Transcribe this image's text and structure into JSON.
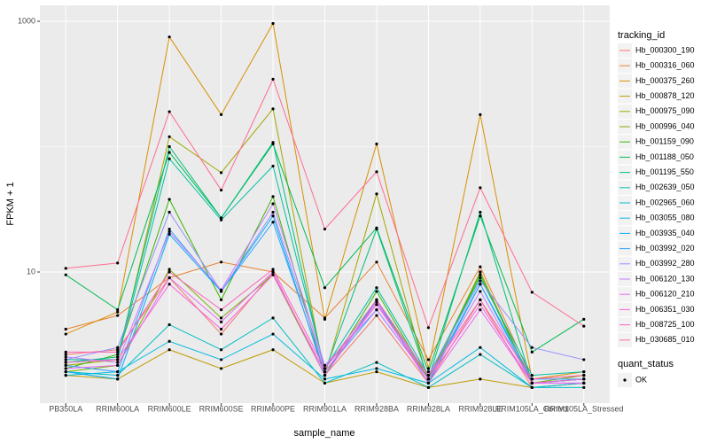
{
  "chart_data": {
    "type": "line",
    "x_label": "sample_name",
    "y_label": "FPKM + 1",
    "log_y": true,
    "grid": true,
    "legend_title": "tracking_id",
    "point_legend_title": "quant_status",
    "point_legend_label": "OK",
    "point_color": "#000000",
    "categories": [
      "PB350LA",
      "RRIM600LA",
      "RRIM600LE",
      "RRIM600SE",
      "RRIM600PE",
      "RRIM901LA",
      "RRIM928BA",
      "RRIM928LA",
      "RRIM928LE",
      "RRIM105LA_Control",
      "RRIM105LA_Stressed"
    ],
    "ylim": [
      0.9,
      1340
    ],
    "yticks": [
      10,
      1000
    ],
    "series": [
      {
        "name": "Hb_000300_190",
        "color": "#F8766D",
        "values": [
          2.2,
          2.4,
          9,
          3.2,
          10,
          1.5,
          4.5,
          1.3,
          6,
          1.2,
          1.3
        ]
      },
      {
        "name": "Hb_000316_060",
        "color": "#EA8331",
        "values": [
          3.5,
          4.5,
          9,
          12,
          10,
          4.3,
          12,
          2,
          11,
          1.4,
          1.5
        ]
      },
      {
        "name": "Hb_000375_260",
        "color": "#D89000",
        "values": [
          3.2,
          4.8,
          750,
          180,
          960,
          4.2,
          105,
          1.7,
          180,
          1.4,
          1.6
        ]
      },
      {
        "name": "Hb_000878_120",
        "color": "#C09B00",
        "values": [
          1.5,
          1.4,
          2.4,
          1.7,
          2.4,
          1.3,
          1.6,
          1.2,
          1.4,
          1.2,
          1.3
        ]
      },
      {
        "name": "Hb_000975_090",
        "color": "#A3A500",
        "values": [
          1.8,
          2,
          120,
          62,
          200,
          1.5,
          42,
          1.3,
          10,
          1.3,
          1.4
        ]
      },
      {
        "name": "Hb_000996_040",
        "color": "#7CAE00",
        "values": [
          1.6,
          1.8,
          10.5,
          4.3,
          9.5,
          1.5,
          6,
          1.4,
          10,
          1.3,
          1.5
        ]
      },
      {
        "name": "Hb_001159_090",
        "color": "#39B600",
        "values": [
          1.7,
          2.2,
          38,
          6,
          40,
          1.5,
          7,
          1.4,
          9.5,
          1.3,
          1.4
        ]
      },
      {
        "name": "Hb_001188_050",
        "color": "#00BB4E",
        "values": [
          9.5,
          5,
          90,
          27,
          105,
          7.5,
          22.5,
          1.6,
          28,
          2.3,
          4.2
        ]
      },
      {
        "name": "Hb_001195_550",
        "color": "#00BF7D",
        "values": [
          1.9,
          2.1,
          100,
          27,
          108,
          1.6,
          22,
          1.4,
          30,
          1.3,
          1.4
        ]
      },
      {
        "name": "Hb_002639_050",
        "color": "#00C1A3",
        "values": [
          2,
          2,
          80,
          26,
          70,
          1.7,
          7.5,
          1.5,
          9,
          1.5,
          1.6
        ]
      },
      {
        "name": "Hb_002965_060",
        "color": "#00BFC4",
        "values": [
          1.6,
          1.5,
          3.8,
          2.4,
          4.3,
          1.3,
          1.9,
          1.2,
          2.2,
          1.2,
          1.2
        ]
      },
      {
        "name": "Hb_003055_080",
        "color": "#00BAE0",
        "values": [
          1.5,
          1.6,
          2.8,
          2,
          3.2,
          1.4,
          1.7,
          1.3,
          2.5,
          1.2,
          1.3
        ]
      },
      {
        "name": "Hb_003935_040",
        "color": "#00B0F6",
        "values": [
          1.6,
          1.4,
          20,
          7,
          28,
          1.5,
          6,
          1.3,
          8,
          1.3,
          1.4
        ]
      },
      {
        "name": "Hb_003992_020",
        "color": "#35A2FF",
        "values": [
          1.8,
          1.6,
          22,
          7,
          25,
          1.6,
          5,
          1.4,
          8,
          1.4,
          1.4
        ]
      },
      {
        "name": "Hb_003992_280",
        "color": "#9590FF",
        "values": [
          2,
          2.5,
          30,
          7,
          30,
          1.7,
          5.5,
          1.5,
          8.5,
          2.5,
          2
        ]
      },
      {
        "name": "Hb_006120_130",
        "color": "#C77CFF",
        "values": [
          2.1,
          1.9,
          21,
          7.2,
          35,
          1.8,
          5,
          1.4,
          7,
          1.3,
          1.3
        ]
      },
      {
        "name": "Hb_006120_210",
        "color": "#E76BF3",
        "values": [
          1.7,
          1.8,
          9,
          4,
          10,
          1.5,
          5.8,
          1.3,
          5,
          1.3,
          1.3
        ]
      },
      {
        "name": "Hb_006351_030",
        "color": "#FA62DB",
        "values": [
          1.9,
          2,
          8,
          3.5,
          9.5,
          1.6,
          5.5,
          1.4,
          5.5,
          1.3,
          1.4
        ]
      },
      {
        "name": "Hb_008725_100",
        "color": "#FF62BC",
        "values": [
          2.3,
          2.3,
          10,
          5,
          10.5,
          1.7,
          6,
          1.5,
          6,
          1.4,
          1.5
        ]
      },
      {
        "name": "Hb_030685_010",
        "color": "#FF6C91",
        "values": [
          10.7,
          11.8,
          190,
          45,
          345,
          22,
          63,
          3.6,
          47,
          6.9,
          3.7
        ]
      }
    ]
  }
}
